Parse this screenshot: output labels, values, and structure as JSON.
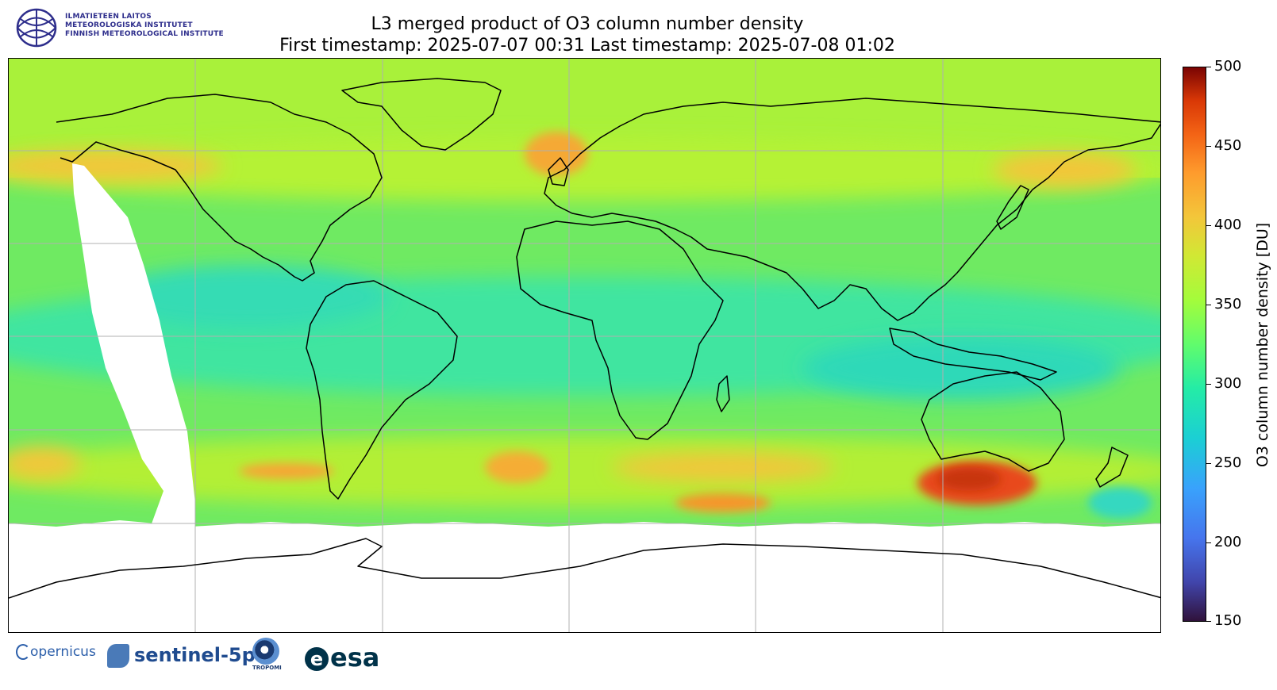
{
  "logo_fmi": {
    "icon": "fmi-globe-icon",
    "lines": [
      "ILMATIETEEN LAITOS",
      "METEOROLOGISKA INSTITUTET",
      "FINNISH METEOROLOGICAL INSTITUTE"
    ]
  },
  "title": {
    "line1": "L3 merged product of O3 column number density",
    "line2": "First timestamp: 2025-07-07 00:31   Last timestamp: 2025-07-08 01:02"
  },
  "map": {
    "projection": "PlateCarree",
    "extent_lon": [
      -180,
      180
    ],
    "extent_lat": [
      -90,
      90
    ],
    "gridlines": true,
    "grid_lon": [
      -120,
      -60,
      0,
      60,
      120
    ],
    "grid_lat": [
      -60,
      -30,
      0,
      30,
      60
    ],
    "no_data_color": "#ffffff",
    "coastline_color": "#000000"
  },
  "colorbar": {
    "label": "O3 column number density [DU]",
    "min": 150,
    "max": 500,
    "ticks": [
      "500",
      "450",
      "400",
      "350",
      "300",
      "250",
      "200",
      "150"
    ],
    "colormap": "turbo",
    "stops": [
      "#30123b",
      "#4145ab",
      "#4675ed",
      "#39a2fc",
      "#1bcfd4",
      "#24eca6",
      "#61fc6c",
      "#a4fc3b",
      "#d1e834",
      "#f3c63a",
      "#fe9b2d",
      "#f36315",
      "#d93806",
      "#7a0403"
    ]
  },
  "logos": {
    "copernicus": "opernicus",
    "sentinel": "sentinel-5p",
    "tropomi": "TROPOMI",
    "esa": "esa"
  }
}
